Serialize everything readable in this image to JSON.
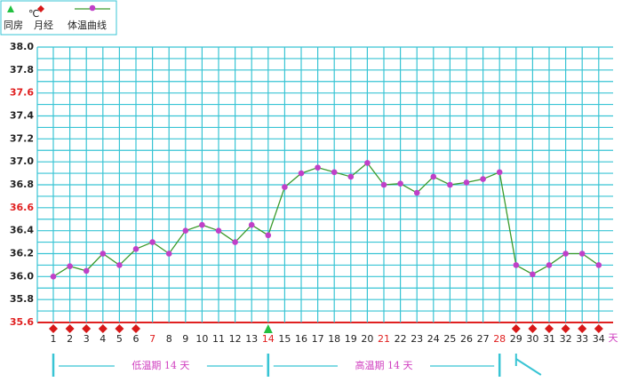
{
  "chart_data": {
    "type": "line",
    "unit_label": "℃",
    "x_unit_label": "天",
    "categories": [
      "1",
      "2",
      "3",
      "4",
      "5",
      "6",
      "7",
      "8",
      "9",
      "10",
      "11",
      "12",
      "13",
      "14",
      "15",
      "16",
      "17",
      "18",
      "19",
      "20",
      "21",
      "22",
      "23",
      "24",
      "25",
      "26",
      "27",
      "28",
      "29",
      "30",
      "31",
      "32",
      "33",
      "34"
    ],
    "category_colors": [
      "#222",
      "#222",
      "#222",
      "#222",
      "#222",
      "#222",
      "#e02020",
      "#222",
      "#222",
      "#222",
      "#222",
      "#222",
      "#222",
      "#e02020",
      "#222",
      "#222",
      "#222",
      "#222",
      "#222",
      "#222",
      "#e02020",
      "#222",
      "#222",
      "#222",
      "#222",
      "#222",
      "#222",
      "#e02020",
      "#222",
      "#222",
      "#222",
      "#222",
      "#222",
      "#222"
    ],
    "series": [
      {
        "name": "体温曲线",
        "color": "#3a9a2a",
        "marker_color": "#c040c8",
        "values": [
          36.0,
          36.09,
          36.05,
          36.2,
          36.1,
          36.24,
          36.3,
          36.2,
          36.4,
          36.45,
          36.4,
          36.3,
          36.45,
          36.36,
          36.78,
          36.9,
          36.95,
          36.91,
          36.87,
          36.99,
          36.8,
          36.81,
          36.73,
          36.87,
          36.8,
          36.82,
          36.85,
          36.91,
          36.1,
          36.02,
          36.1,
          36.2,
          36.2,
          36.1
        ]
      }
    ],
    "markers": [
      {
        "name": "同房",
        "shape": "triangle",
        "color": "#22c040",
        "days": [
          "14"
        ]
      },
      {
        "name": "月经",
        "shape": "diamond",
        "color": "#d81818",
        "days": [
          "1",
          "2",
          "3",
          "4",
          "5",
          "6",
          "29",
          "30",
          "31",
          "32",
          "33",
          "34"
        ]
      }
    ],
    "ylim": [
      35.6,
      38.0
    ],
    "yticks": [
      {
        "value": 35.6,
        "label": "35.6"
      },
      {
        "value": 35.8,
        "label": "35.8"
      },
      {
        "value": 36.0,
        "label": "36.0"
      },
      {
        "value": 36.2,
        "label": "36.2"
      },
      {
        "value": 36.4,
        "label": "36.4"
      },
      {
        "value": 36.6,
        "label": "36.6"
      },
      {
        "value": 36.8,
        "label": "36.8"
      },
      {
        "value": 37.0,
        "label": "37.0"
      },
      {
        "value": 37.2,
        "label": "37.2"
      },
      {
        "value": 37.4,
        "label": "37.4"
      },
      {
        "value": 37.6,
        "label": "37.6"
      },
      {
        "value": 37.8,
        "label": "37.8"
      },
      {
        "value": 38.0,
        "label": "38.0"
      }
    ],
    "ytick_colors": [
      "#e02020",
      "#222",
      "#222",
      "#222",
      "#222",
      "#e02020",
      "#222",
      "#222",
      "#222",
      "#222",
      "#e02020",
      "#222",
      "#222"
    ],
    "grid": true,
    "grid_color": "#38c4d4",
    "phases": [
      {
        "label": "低温期 14 天",
        "from": "1",
        "to": "14",
        "color": "#d040c0"
      },
      {
        "label": "高温期 14 天",
        "from": "14",
        "to": "28",
        "color": "#d040c0"
      }
    ]
  }
}
